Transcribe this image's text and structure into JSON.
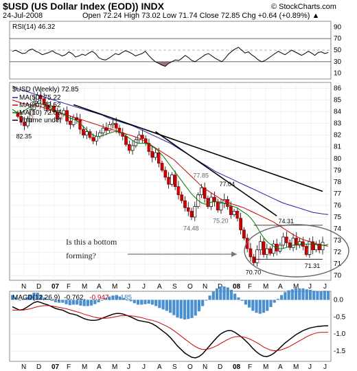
{
  "chart_data": {
    "type": "candlestick",
    "title": "$USD (US Dollar Index (EOD)) INDX",
    "watermark": "© StockCharts.com",
    "date": "24-Jul-2008",
    "summary": "Open 72.24  High 73.02  Low 71.74  Close 72.85  Chg +0.64 (+0.89%) ▲",
    "colors": {
      "up": "#cc0000",
      "down": "#cc0000",
      "hollow_fill": "#ffffff",
      "ma50": "#2020a0",
      "ma20": "#cc0000",
      "ma10": "#007700",
      "macd": "#000000",
      "signal": "#cc0000",
      "histogram": "#4a90d0",
      "rsi_fill": "#8b5a5a"
    },
    "x_axis": {
      "labels": [
        "N",
        "D",
        "07",
        "F",
        "M",
        "A",
        "M",
        "J",
        "J",
        "A",
        "S",
        "O",
        "N",
        "D",
        "08",
        "F",
        "M",
        "A",
        "M",
        "J",
        "J"
      ],
      "bold": [
        "07",
        "08"
      ],
      "range": [
        "2006-11",
        "2008-07"
      ]
    },
    "rsi": {
      "label": "RSI(14) 46.32",
      "ticks": [
        90,
        70,
        50,
        30,
        10
      ],
      "levels": [
        70,
        50,
        30
      ],
      "ylim": [
        0,
        100
      ],
      "values": [
        48,
        50,
        47,
        44,
        45,
        50,
        52,
        48,
        46,
        42,
        44,
        46,
        49,
        45,
        43,
        40,
        42,
        47,
        44,
        38,
        40,
        43,
        41,
        45,
        48,
        44,
        37,
        34,
        33,
        36,
        40,
        44,
        42,
        46,
        49,
        47,
        44,
        40,
        42,
        44,
        48,
        41,
        35,
        30,
        27,
        24,
        22,
        27,
        30,
        33,
        32,
        36,
        41,
        37,
        32,
        30,
        34,
        38,
        42,
        44,
        40,
        36,
        33,
        30,
        36,
        43,
        48,
        52,
        55,
        50,
        45,
        47,
        42,
        38,
        33,
        30,
        32,
        36,
        40,
        44,
        48,
        45,
        42,
        46,
        50,
        47,
        44,
        41,
        44,
        48,
        45,
        41,
        46,
        47,
        44,
        46
      ]
    },
    "price": {
      "legend_title": "$USD (Weekly) 72.85",
      "ticks": [
        86,
        85,
        84,
        83,
        82,
        81,
        80,
        79,
        78,
        77,
        76,
        75,
        74,
        73,
        72,
        71,
        70
      ],
      "ylim": [
        69.6,
        86.5
      ],
      "legend": [
        {
          "text": "MA(50) 75.22",
          "color": "#2020a0"
        },
        {
          "text": "MA(20) 72.52",
          "color": "#cc0000"
        },
        {
          "text": "MA(10) 72.67",
          "color": "#007700"
        },
        {
          "text": "Volume undef",
          "color": "#000000"
        }
      ],
      "closes": [
        83.6,
        83.1,
        82.8,
        83.4,
        84.2,
        84.9,
        85.4,
        85.1,
        84.6,
        84.2,
        84.5,
        84.0,
        83.4,
        83.8,
        84.1,
        83.2,
        82.9,
        83.5,
        83.3,
        82.5,
        82.0,
        82.3,
        81.8,
        81.5,
        81.9,
        82.2,
        82.6,
        82.4,
        82.9,
        83.0,
        82.6,
        82.2,
        81.9,
        81.2,
        80.7,
        81.1,
        81.6,
        82.0,
        81.7,
        81.3,
        80.6,
        80.1,
        80.5,
        79.6,
        79.0,
        78.4,
        77.8,
        78.6,
        77.6,
        76.9,
        76.4,
        75.8,
        75.5,
        75.0,
        75.9,
        76.9,
        77.5,
        76.6,
        75.9,
        76.7,
        76.3,
        75.6,
        76.2,
        76.5,
        75.9,
        75.2,
        75.5,
        74.9,
        73.9,
        73.2,
        72.3,
        71.6,
        71.1,
        72.2,
        72.9,
        71.8,
        72.3,
        71.9,
        72.7,
        72.1,
        72.6,
        73.3,
        72.8,
        72.4,
        73.2,
        72.6,
        72.9,
        72.5,
        71.8,
        72.9,
        72.2,
        72.7,
        72.2,
        72.85
      ],
      "ma50": [
        86.2,
        86.0,
        85.9,
        85.8,
        85.7,
        85.6,
        85.5,
        85.4,
        85.3,
        85.2,
        85.1,
        85.0,
        84.9,
        84.8,
        84.7,
        84.6,
        84.5,
        84.4,
        84.3,
        84.2,
        84.1,
        84.0,
        83.9,
        83.8,
        83.7,
        83.55,
        83.4,
        83.3,
        83.2,
        83.1,
        83.0,
        82.9,
        82.8,
        82.65,
        82.5,
        82.35,
        82.2,
        82.05,
        81.9,
        81.75,
        81.6,
        81.45,
        81.3,
        81.1,
        80.9,
        80.7,
        80.5,
        80.3,
        80.1,
        79.9,
        79.7,
        79.5,
        79.3,
        79.1,
        78.9,
        78.75,
        78.6,
        78.45,
        78.3,
        78.15,
        78.0,
        77.85,
        77.7,
        77.55,
        77.4,
        77.25,
        77.1,
        76.95,
        76.8,
        76.65,
        76.5,
        76.35,
        76.2,
        76.1,
        76.0,
        75.9,
        75.8,
        75.7,
        75.6,
        75.5,
        75.4,
        75.35,
        75.3,
        75.25,
        75.22
      ],
      "ma20": [
        85.0,
        84.9,
        84.8,
        84.7,
        84.65,
        84.6,
        84.55,
        84.5,
        84.4,
        84.3,
        84.2,
        84.1,
        84.0,
        83.9,
        83.8,
        83.7,
        83.6,
        83.5,
        83.4,
        83.3,
        83.2,
        83.1,
        83.0,
        82.9,
        82.8,
        82.7,
        82.6,
        82.5,
        82.4,
        82.3,
        82.2,
        82.1,
        82.0,
        81.9,
        81.8,
        81.65,
        81.5,
        81.3,
        81.1,
        80.9,
        80.7,
        80.5,
        80.3,
        80.1,
        79.9,
        79.6,
        79.3,
        79.0,
        78.7,
        78.4,
        78.1,
        77.8,
        77.5,
        77.3,
        77.1,
        76.9,
        76.7,
        76.5,
        76.35,
        76.2,
        76.1,
        76.0,
        75.9,
        75.8,
        75.65,
        75.5,
        75.35,
        75.2,
        75.05,
        74.9,
        74.75,
        74.6,
        74.4,
        74.2,
        74.0,
        73.8,
        73.6,
        73.4,
        73.25,
        73.1,
        73.0,
        72.9,
        72.8,
        72.7,
        72.62,
        72.57,
        72.52
      ],
      "ma10": [
        84.2,
        84.0,
        83.9,
        84.0,
        84.2,
        84.4,
        84.6,
        84.7,
        84.7,
        84.6,
        84.5,
        84.3,
        84.1,
        84.0,
        83.9,
        83.7,
        83.5,
        83.4,
        83.3,
        83.1,
        82.8,
        82.5,
        82.2,
        82.0,
        81.9,
        81.9,
        82.0,
        82.1,
        82.2,
        82.3,
        82.3,
        82.2,
        82.0,
        81.8,
        81.6,
        81.4,
        81.3,
        81.3,
        81.3,
        81.2,
        81.0,
        80.8,
        80.5,
        80.2,
        79.8,
        79.4,
        79.0,
        78.6,
        78.2,
        77.8,
        77.4,
        77.0,
        76.7,
        76.4,
        76.2,
        76.1,
        76.2,
        76.3,
        76.3,
        76.3,
        76.2,
        76.1,
        76.0,
        75.9,
        75.8,
        75.6,
        75.4,
        75.2,
        74.9,
        74.5,
        74.0,
        73.5,
        73.1,
        72.8,
        72.6,
        72.4,
        72.3,
        72.3,
        72.4,
        72.5,
        72.6,
        72.7,
        72.7,
        72.7,
        72.7,
        72.7,
        72.7,
        72.6,
        72.6,
        72.6,
        72.67
      ],
      "point_labels": [
        {
          "text": "82.35",
          "x_index": 2,
          "y": 82.35,
          "pos": "below",
          "color": "#000000"
        },
        {
          "text": "74.48",
          "x_index": 53,
          "y": 74.5,
          "pos": "below",
          "color": "#666666"
        },
        {
          "text": "77.85",
          "x_index": 56,
          "y": 78.2,
          "pos": "above",
          "color": "#666666"
        },
        {
          "text": "77.04",
          "x_index": 64,
          "y": 77.45,
          "pos": "above",
          "color": "#000000"
        },
        {
          "text": "75.20",
          "x_index": 62,
          "y": 75.15,
          "pos": "below",
          "color": "#666666"
        },
        {
          "text": "74.31",
          "x_index": 82,
          "y": 74.3,
          "pos": "above",
          "color": "#000000"
        },
        {
          "text": "70.70",
          "x_index": 72,
          "y": 70.75,
          "pos": "below",
          "color": "#000000"
        },
        {
          "text": "71.31",
          "x_index": 90,
          "y": 71.3,
          "pos": "below",
          "color": "#000000"
        }
      ],
      "trendlines": [
        {
          "x0_index": 17,
          "y0": 84.6,
          "x1_index": 93,
          "y1": 77.2,
          "color": "#000000"
        },
        {
          "x0_index": 42,
          "y0": 82.3,
          "x1_index": 79,
          "y1": 75.1,
          "color": "#000000"
        }
      ],
      "support_box": {
        "x0_index": 72,
        "x1_index": 93,
        "y_low": 71.4,
        "y_high": 74.3
      }
    },
    "annotation": {
      "line1": "Is this a bottom",
      "line2": "forming?"
    },
    "macd": {
      "label": "MACD(12,26,9)",
      "macd_value": "-0.762,",
      "signal_value": "-0.947,",
      "hist_value": "0.185",
      "ticks": [
        0.0,
        -0.5,
        -1.0,
        -1.5
      ],
      "tick_labels": [
        "0.0",
        "-0.5",
        "-1.0",
        "-1.5"
      ],
      "ylim": [
        -1.8,
        0.25
      ],
      "macd": [
        -0.2,
        -0.25,
        -0.3,
        -0.28,
        -0.22,
        -0.15,
        -0.08,
        -0.05,
        -0.08,
        -0.12,
        -0.15,
        -0.2,
        -0.25,
        -0.28,
        -0.3,
        -0.35,
        -0.4,
        -0.42,
        -0.45,
        -0.5,
        -0.55,
        -0.58,
        -0.6,
        -0.6,
        -0.58,
        -0.54,
        -0.5,
        -0.46,
        -0.42,
        -0.4,
        -0.4,
        -0.42,
        -0.46,
        -0.5,
        -0.55,
        -0.6,
        -0.62,
        -0.64,
        -0.66,
        -0.7,
        -0.76,
        -0.84,
        -0.92,
        -1.0,
        -1.1,
        -1.22,
        -1.35,
        -1.45,
        -1.55,
        -1.62,
        -1.68,
        -1.7,
        -1.66,
        -1.58,
        -1.46,
        -1.34,
        -1.22,
        -1.1,
        -1.0,
        -0.94,
        -0.9,
        -0.9,
        -0.95,
        -1.02,
        -1.1,
        -1.2,
        -1.3,
        -1.42,
        -1.52,
        -1.6,
        -1.65,
        -1.66,
        -1.62,
        -1.55,
        -1.46,
        -1.36,
        -1.26,
        -1.18,
        -1.1,
        -1.02,
        -0.96,
        -0.9,
        -0.86,
        -0.82,
        -0.8,
        -0.78,
        -0.77,
        -0.76,
        -0.76
      ],
      "signal": [
        -0.3,
        -0.3,
        -0.3,
        -0.3,
        -0.28,
        -0.26,
        -0.23,
        -0.2,
        -0.18,
        -0.17,
        -0.17,
        -0.18,
        -0.2,
        -0.22,
        -0.24,
        -0.26,
        -0.29,
        -0.32,
        -0.35,
        -0.38,
        -0.42,
        -0.45,
        -0.48,
        -0.51,
        -0.53,
        -0.54,
        -0.54,
        -0.53,
        -0.51,
        -0.49,
        -0.47,
        -0.46,
        -0.46,
        -0.47,
        -0.48,
        -0.5,
        -0.52,
        -0.55,
        -0.58,
        -0.6,
        -0.63,
        -0.67,
        -0.72,
        -0.77,
        -0.83,
        -0.9,
        -0.98,
        -1.06,
        -1.14,
        -1.22,
        -1.3,
        -1.37,
        -1.42,
        -1.45,
        -1.45,
        -1.43,
        -1.39,
        -1.34,
        -1.28,
        -1.22,
        -1.16,
        -1.11,
        -1.08,
        -1.07,
        -1.08,
        -1.1,
        -1.14,
        -1.19,
        -1.25,
        -1.31,
        -1.38,
        -1.43,
        -1.47,
        -1.49,
        -1.48,
        -1.46,
        -1.42,
        -1.38,
        -1.32,
        -1.26,
        -1.2,
        -1.14,
        -1.08,
        -1.03,
        -0.99,
        -0.96,
        -0.95,
        -0.95,
        -0.947
      ]
    }
  }
}
